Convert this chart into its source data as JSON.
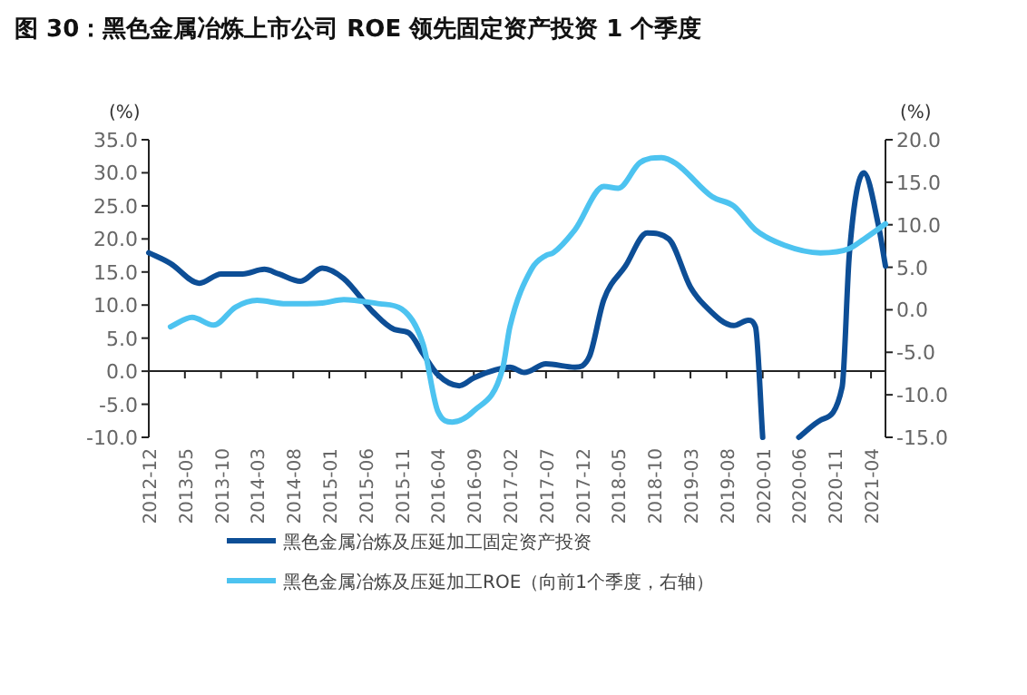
{
  "chart_data": {
    "type": "line",
    "title": "图 30：黑色金属冶炼上市公司 ROE 领先固定资产投资 1 个季度",
    "ylabel": "(%)",
    "y2label": "(%)",
    "series": [
      {
        "name": "黑色金属冶炼及压延加工固定资产投资",
        "color": "#0d4e96",
        "x": [
          "2012-12",
          "2013-03",
          "2013-07",
          "2013-10",
          "2014-01",
          "2014-04",
          "2014-06",
          "2014-09",
          "2014-12",
          "2015-03",
          "2015-07",
          "2015-10",
          "2015-12",
          "2016-02",
          "2016-04",
          "2016-07",
          "2016-09",
          "2016-12",
          "2017-02",
          "2017-04",
          "2017-07",
          "2017-11",
          "2018-01",
          "2018-03",
          "2018-06",
          "2018-09",
          "2018-12",
          "2019-03",
          "2019-05",
          "2019-09",
          "2019-11",
          "2019-12",
          "2020-01",
          "2020-03",
          "2020-06",
          "2020-09",
          "2020-12",
          "2021-01",
          "2021-03",
          "2021-05",
          "2021-06"
        ],
        "values": [
          17.9,
          16.3,
          13.3,
          14.7,
          14.7,
          15.4,
          14.7,
          13.6,
          15.6,
          14.0,
          9.0,
          6.3,
          5.8,
          2.6,
          -0.5,
          -2.2,
          -1.0,
          0.2,
          0.6,
          -0.2,
          1.1,
          0.6,
          2.2,
          10.8,
          15.9,
          20.9,
          20.0,
          12.7,
          9.9,
          6.9,
          7.7,
          6.7,
          -10,
          null,
          -10,
          -7.4,
          -2.4,
          17.7,
          30.0,
          22.2,
          15.9
        ]
      },
      {
        "name": "黑色金属冶炼及压延加工ROE（向前1个季度，右轴）",
        "color": "#4dc3f0",
        "axis": "y2",
        "x": [
          "2013-03",
          "2013-06",
          "2013-09",
          "2013-12",
          "2014-03",
          "2014-07",
          "2014-12",
          "2015-03",
          "2015-08",
          "2015-11",
          "2016-02",
          "2016-04",
          "2016-06",
          "2016-09",
          "2017-01",
          "2017-02",
          "2017-05",
          "2017-07",
          "2017-08",
          "2017-11",
          "2018-03",
          "2018-05",
          "2018-08",
          "2018-11",
          "2019-01",
          "2019-06",
          "2019-09",
          "2019-12",
          "2020-04",
          "2020-09",
          "2021-01",
          "2021-03",
          "2021-06"
        ],
        "values": [
          -2.0,
          -0.9,
          -1.8,
          0.3,
          1.1,
          0.7,
          0.8,
          1.2,
          0.7,
          0.1,
          -4.1,
          -11.9,
          -13.2,
          -11.9,
          -6.9,
          -2.0,
          4.8,
          6.4,
          6.7,
          9.4,
          14.5,
          14.3,
          17.3,
          17.9,
          17.2,
          13.3,
          12.2,
          9.4,
          7.6,
          6.7,
          7.2,
          8.3,
          10.1
        ]
      }
    ],
    "xlim": [
      "2012-12",
      "2021-06"
    ],
    "xticks": [
      "2012-12",
      "2013-05",
      "2013-10",
      "2014-03",
      "2014-08",
      "2015-01",
      "2015-06",
      "2015-11",
      "2016-04",
      "2016-09",
      "2017-02",
      "2017-07",
      "2017-12",
      "2018-05",
      "2018-10",
      "2019-03",
      "2019-08",
      "2020-01",
      "2020-06",
      "2020-11",
      "2021-04"
    ],
    "ylim": [
      -10,
      35
    ],
    "yticks": [
      {
        "value": -10,
        "label": "-10.0"
      },
      {
        "value": -5,
        "label": "-5.0"
      },
      {
        "value": 0,
        "label": "0.0"
      },
      {
        "value": 5,
        "label": "5.0"
      },
      {
        "value": 10,
        "label": "10.0"
      },
      {
        "value": 15,
        "label": "15.0"
      },
      {
        "value": 20,
        "label": "20.0"
      },
      {
        "value": 25,
        "label": "25.0"
      },
      {
        "value": 30,
        "label": "30.0"
      },
      {
        "value": 35,
        "label": "35.0"
      }
    ],
    "y2lim": [
      -15,
      20
    ],
    "y2ticks": [
      {
        "value": -15,
        "label": "-15.0"
      },
      {
        "value": -10,
        "label": "-10.0"
      },
      {
        "value": -5,
        "label": "-5.0"
      },
      {
        "value": 0,
        "label": "0.0"
      },
      {
        "value": 5,
        "label": "5.0"
      },
      {
        "value": 10,
        "label": "10.0"
      },
      {
        "value": 15,
        "label": "15.0"
      },
      {
        "value": 20,
        "label": "20.0"
      }
    ],
    "legend": "bottom",
    "marker": "none",
    "line_style": "solid"
  }
}
